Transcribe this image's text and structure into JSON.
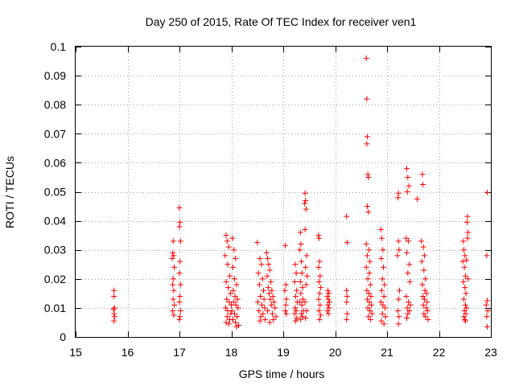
{
  "chart_data": {
    "type": "scatter",
    "title": "Day 250 of 2015, Rate Of TEC Index for receiver ven1",
    "xlabel": "GPS time / hours",
    "ylabel": "ROTI / TECUs",
    "xlim": [
      15,
      23
    ],
    "ylim": [
      0,
      0.1
    ],
    "x_ticks": [
      15,
      16,
      17,
      18,
      19,
      20,
      21,
      22,
      23
    ],
    "y_ticks": [
      0,
      0.01,
      0.02,
      0.03,
      0.04,
      0.05,
      0.06,
      0.07,
      0.08,
      0.09,
      0.1
    ],
    "x_tick_labels": [
      "15",
      "16",
      "17",
      "18",
      "19",
      "20",
      "21",
      "22",
      "23"
    ],
    "y_tick_labels": [
      "0",
      "0.01",
      "0.02",
      "0.03",
      "0.04",
      "0.05",
      "0.06",
      "0.07",
      "0.08",
      "0.09",
      "0.1"
    ],
    "grid": true,
    "marker": "+",
    "color": "#ff0000",
    "series": [
      {
        "name": "ROTI",
        "points": [
          [
            15.74,
            0.016
          ],
          [
            15.74,
            0.014
          ],
          [
            15.75,
            0.01
          ],
          [
            15.73,
            0.0095
          ],
          [
            15.74,
            0.008
          ],
          [
            15.75,
            0.007
          ],
          [
            15.74,
            0.0055
          ],
          [
            16.88,
            0.033
          ],
          [
            16.87,
            0.029
          ],
          [
            16.89,
            0.028
          ],
          [
            16.86,
            0.027
          ],
          [
            16.9,
            0.024
          ],
          [
            16.88,
            0.02
          ],
          [
            16.87,
            0.018
          ],
          [
            16.89,
            0.016
          ],
          [
            16.88,
            0.013
          ],
          [
            16.9,
            0.011
          ],
          [
            16.87,
            0.009
          ],
          [
            16.89,
            0.0075
          ],
          [
            17.0,
            0.0445
          ],
          [
            17.01,
            0.0395
          ],
          [
            17.0,
            0.038
          ],
          [
            17.02,
            0.033
          ],
          [
            17.01,
            0.026
          ],
          [
            17.0,
            0.022
          ],
          [
            17.02,
            0.018
          ],
          [
            17.01,
            0.014
          ],
          [
            17.0,
            0.012
          ],
          [
            17.02,
            0.009
          ],
          [
            17.01,
            0.007
          ],
          [
            17.0,
            0.006
          ],
          [
            17.9,
            0.035
          ],
          [
            17.92,
            0.033
          ],
          [
            17.95,
            0.031
          ],
          [
            17.88,
            0.028
          ],
          [
            17.93,
            0.025
          ],
          [
            17.97,
            0.021
          ],
          [
            17.9,
            0.019
          ],
          [
            17.94,
            0.017
          ],
          [
            17.98,
            0.015
          ],
          [
            17.91,
            0.013
          ],
          [
            17.96,
            0.012
          ],
          [
            18.0,
            0.011
          ],
          [
            17.89,
            0.01
          ],
          [
            17.93,
            0.009
          ],
          [
            17.99,
            0.008
          ],
          [
            17.92,
            0.007
          ],
          [
            17.97,
            0.006
          ],
          [
            17.9,
            0.005
          ],
          [
            17.95,
            0.0045
          ],
          [
            18.02,
            0.034
          ],
          [
            18.05,
            0.03
          ],
          [
            18.08,
            0.027
          ],
          [
            18.03,
            0.024
          ],
          [
            18.06,
            0.02
          ],
          [
            18.1,
            0.018
          ],
          [
            18.04,
            0.016
          ],
          [
            18.07,
            0.014
          ],
          [
            18.12,
            0.013
          ],
          [
            18.05,
            0.012
          ],
          [
            18.09,
            0.011
          ],
          [
            18.13,
            0.01
          ],
          [
            18.01,
            0.009
          ],
          [
            18.06,
            0.008
          ],
          [
            18.11,
            0.007
          ],
          [
            18.03,
            0.006
          ],
          [
            18.08,
            0.005
          ],
          [
            18.14,
            0.004
          ],
          [
            18.1,
            0.0035
          ],
          [
            18.5,
            0.0325
          ],
          [
            18.55,
            0.027
          ],
          [
            18.58,
            0.025
          ],
          [
            18.52,
            0.022
          ],
          [
            18.6,
            0.02
          ],
          [
            18.54,
            0.018
          ],
          [
            18.62,
            0.016
          ],
          [
            18.56,
            0.014
          ],
          [
            18.63,
            0.013
          ],
          [
            18.51,
            0.012
          ],
          [
            18.59,
            0.011
          ],
          [
            18.64,
            0.01
          ],
          [
            18.53,
            0.009
          ],
          [
            18.61,
            0.008
          ],
          [
            18.57,
            0.007
          ],
          [
            18.65,
            0.006
          ],
          [
            18.55,
            0.0055
          ],
          [
            18.68,
            0.029
          ],
          [
            18.7,
            0.027
          ],
          [
            18.72,
            0.025
          ],
          [
            18.74,
            0.023
          ],
          [
            18.69,
            0.021
          ],
          [
            18.76,
            0.019
          ],
          [
            18.71,
            0.017
          ],
          [
            18.78,
            0.016
          ],
          [
            18.73,
            0.015
          ],
          [
            18.8,
            0.014
          ],
          [
            18.75,
            0.013
          ],
          [
            18.82,
            0.012
          ],
          [
            18.77,
            0.011
          ],
          [
            18.84,
            0.01
          ],
          [
            18.7,
            0.009
          ],
          [
            18.79,
            0.008
          ],
          [
            18.86,
            0.007
          ],
          [
            18.81,
            0.006
          ],
          [
            18.74,
            0.005
          ],
          [
            19.04,
            0.0315
          ],
          [
            19.05,
            0.018
          ],
          [
            19.03,
            0.016
          ],
          [
            19.06,
            0.013
          ],
          [
            19.05,
            0.011
          ],
          [
            19.04,
            0.009
          ],
          [
            19.06,
            0.008
          ],
          [
            19.23,
            0.025
          ],
          [
            19.25,
            0.022
          ],
          [
            19.22,
            0.019
          ],
          [
            19.26,
            0.016
          ],
          [
            19.24,
            0.014
          ],
          [
            19.27,
            0.012
          ],
          [
            19.23,
            0.01
          ],
          [
            19.25,
            0.009
          ],
          [
            19.22,
            0.008
          ],
          [
            19.26,
            0.0065
          ],
          [
            19.24,
            0.0055
          ],
          [
            19.33,
            0.036
          ],
          [
            19.34,
            0.032
          ],
          [
            19.32,
            0.03
          ],
          [
            19.35,
            0.026
          ],
          [
            19.36,
            0.022
          ],
          [
            19.33,
            0.019
          ],
          [
            19.37,
            0.017
          ],
          [
            19.34,
            0.015
          ],
          [
            19.38,
            0.013
          ],
          [
            19.32,
            0.012
          ],
          [
            19.36,
            0.011
          ],
          [
            19.39,
            0.009
          ],
          [
            19.35,
            0.008
          ],
          [
            19.37,
            0.007
          ],
          [
            19.33,
            0.006
          ],
          [
            19.42,
            0.0495
          ],
          [
            19.43,
            0.047
          ],
          [
            19.41,
            0.046
          ],
          [
            19.44,
            0.044
          ],
          [
            19.42,
            0.037
          ],
          [
            19.45,
            0.028
          ],
          [
            19.43,
            0.024
          ],
          [
            19.46,
            0.021
          ],
          [
            19.44,
            0.018
          ],
          [
            19.42,
            0.012
          ],
          [
            19.45,
            0.009
          ],
          [
            19.43,
            0.0065
          ],
          [
            19.68,
            0.035
          ],
          [
            19.69,
            0.034
          ],
          [
            19.7,
            0.026
          ],
          [
            19.68,
            0.024
          ],
          [
            19.71,
            0.021
          ],
          [
            19.69,
            0.019
          ],
          [
            19.72,
            0.017
          ],
          [
            19.7,
            0.015
          ],
          [
            19.68,
            0.013
          ],
          [
            19.71,
            0.011
          ],
          [
            19.69,
            0.009
          ],
          [
            19.72,
            0.0075
          ],
          [
            19.7,
            0.006
          ],
          [
            19.86,
            0.016
          ],
          [
            19.88,
            0.015
          ],
          [
            19.85,
            0.014
          ],
          [
            19.87,
            0.013
          ],
          [
            19.89,
            0.012
          ],
          [
            19.86,
            0.011
          ],
          [
            19.88,
            0.01
          ],
          [
            19.85,
            0.009
          ],
          [
            19.87,
            0.008
          ],
          [
            20.22,
            0.0415
          ],
          [
            20.23,
            0.0325
          ],
          [
            20.22,
            0.016
          ],
          [
            20.23,
            0.014
          ],
          [
            20.22,
            0.012
          ],
          [
            20.23,
            0.008
          ],
          [
            20.22,
            0.006
          ],
          [
            20.6,
            0.096
          ],
          [
            20.61,
            0.082
          ],
          [
            20.62,
            0.069
          ],
          [
            20.61,
            0.0665
          ],
          [
            20.63,
            0.056
          ],
          [
            20.64,
            0.055
          ],
          [
            20.62,
            0.045
          ],
          [
            20.64,
            0.043
          ],
          [
            20.6,
            0.032
          ],
          [
            20.65,
            0.03
          ],
          [
            20.62,
            0.028
          ],
          [
            20.67,
            0.026
          ],
          [
            20.6,
            0.024
          ],
          [
            20.66,
            0.022
          ],
          [
            20.63,
            0.02
          ],
          [
            20.68,
            0.018
          ],
          [
            20.61,
            0.016
          ],
          [
            20.65,
            0.015
          ],
          [
            20.69,
            0.014
          ],
          [
            20.62,
            0.013
          ],
          [
            20.66,
            0.012
          ],
          [
            20.7,
            0.011
          ],
          [
            20.63,
            0.01
          ],
          [
            20.67,
            0.009
          ],
          [
            20.71,
            0.008
          ],
          [
            20.64,
            0.007
          ],
          [
            20.68,
            0.006
          ],
          [
            20.88,
            0.037
          ],
          [
            20.9,
            0.034
          ],
          [
            20.92,
            0.03
          ],
          [
            20.89,
            0.027
          ],
          [
            20.93,
            0.024
          ],
          [
            20.91,
            0.02
          ],
          [
            20.95,
            0.018
          ],
          [
            20.9,
            0.016
          ],
          [
            20.94,
            0.014
          ],
          [
            20.88,
            0.012
          ],
          [
            20.92,
            0.011
          ],
          [
            20.96,
            0.01
          ],
          [
            20.91,
            0.008
          ],
          [
            20.97,
            0.007
          ],
          [
            20.89,
            0.0055
          ],
          [
            20.94,
            0.0045
          ],
          [
            21.22,
            0.0495
          ],
          [
            21.21,
            0.048
          ],
          [
            21.22,
            0.033
          ],
          [
            21.23,
            0.03
          ],
          [
            21.2,
            0.028
          ],
          [
            21.24,
            0.016
          ],
          [
            21.22,
            0.013
          ],
          [
            21.21,
            0.009
          ],
          [
            21.23,
            0.007
          ],
          [
            21.22,
            0.0045
          ],
          [
            21.38,
            0.058
          ],
          [
            21.4,
            0.055
          ],
          [
            21.42,
            0.052
          ],
          [
            21.39,
            0.05
          ],
          [
            21.37,
            0.034
          ],
          [
            21.41,
            0.033
          ],
          [
            21.38,
            0.029
          ],
          [
            21.43,
            0.025
          ],
          [
            21.4,
            0.022
          ],
          [
            21.44,
            0.019
          ],
          [
            21.37,
            0.014
          ],
          [
            21.41,
            0.012
          ],
          [
            21.45,
            0.011
          ],
          [
            21.39,
            0.01
          ],
          [
            21.43,
            0.009
          ],
          [
            21.4,
            0.008
          ],
          [
            21.38,
            0.0065
          ],
          [
            21.58,
            0.0475
          ],
          [
            21.68,
            0.056
          ],
          [
            21.69,
            0.0525
          ],
          [
            21.66,
            0.033
          ],
          [
            21.7,
            0.031
          ],
          [
            21.72,
            0.028
          ],
          [
            21.67,
            0.026
          ],
          [
            21.71,
            0.023
          ],
          [
            21.74,
            0.02
          ],
          [
            21.68,
            0.018
          ],
          [
            21.73,
            0.016
          ],
          [
            21.76,
            0.015
          ],
          [
            21.69,
            0.014
          ],
          [
            21.72,
            0.013
          ],
          [
            21.77,
            0.012
          ],
          [
            21.7,
            0.011
          ],
          [
            21.75,
            0.01
          ],
          [
            21.78,
            0.009
          ],
          [
            21.71,
            0.008
          ],
          [
            21.74,
            0.007
          ],
          [
            21.79,
            0.006
          ],
          [
            22.47,
            0.033
          ],
          [
            22.48,
            0.03
          ],
          [
            22.5,
            0.028
          ],
          [
            22.46,
            0.026
          ],
          [
            22.49,
            0.024
          ],
          [
            22.51,
            0.021
          ],
          [
            22.47,
            0.019
          ],
          [
            22.5,
            0.017
          ],
          [
            22.52,
            0.015
          ],
          [
            22.48,
            0.013
          ],
          [
            22.51,
            0.011
          ],
          [
            22.53,
            0.01
          ],
          [
            22.49,
            0.009
          ],
          [
            22.52,
            0.008
          ],
          [
            22.48,
            0.007
          ],
          [
            22.5,
            0.006
          ],
          [
            22.51,
            0.0055
          ],
          [
            22.55,
            0.0415
          ],
          [
            22.54,
            0.0395
          ],
          [
            22.56,
            0.036
          ],
          [
            22.55,
            0.034
          ],
          [
            22.53,
            0.0265
          ],
          [
            22.56,
            0.02
          ],
          [
            22.93,
            0.0498
          ],
          [
            22.92,
            0.028
          ],
          [
            22.93,
            0.0125
          ],
          [
            22.91,
            0.011
          ],
          [
            22.94,
            0.009
          ],
          [
            22.92,
            0.007
          ],
          [
            22.93,
            0.0035
          ]
        ]
      }
    ]
  }
}
